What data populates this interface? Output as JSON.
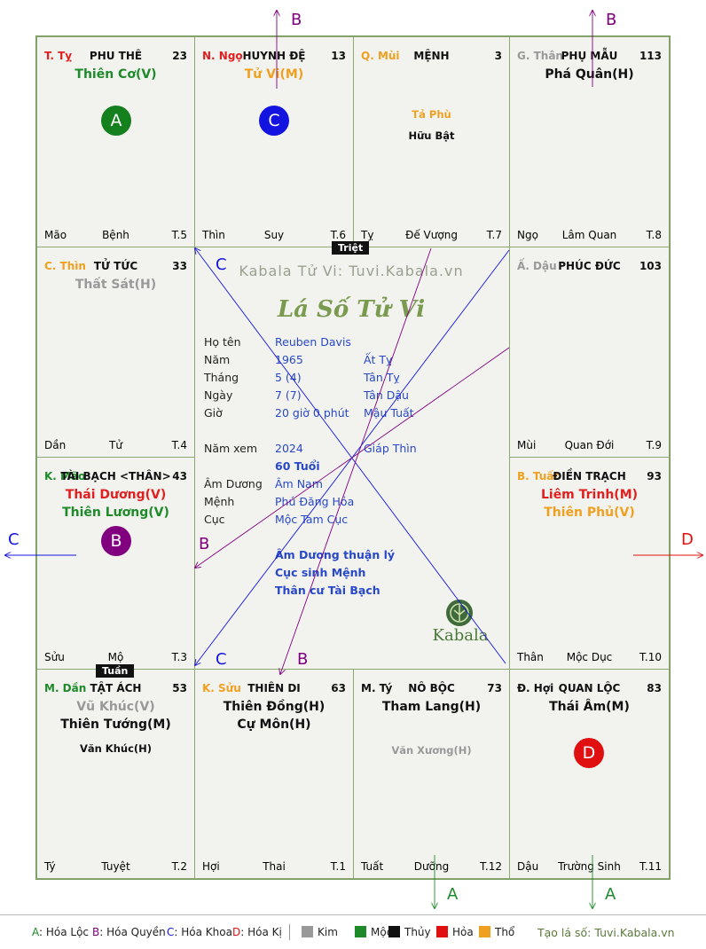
{
  "center": {
    "watermark": "Kabala Tử Vi: Tuvi.Kabala.vn",
    "title": "Lá Số Tử Vi",
    "logo_text": "Kabala",
    "rows": [
      {
        "label": "Họ tên",
        "value": "Reuben Davis",
        "extra": ""
      },
      {
        "label": "Năm",
        "value": "1965",
        "extra": "Ất Tỵ"
      },
      {
        "label": "Tháng",
        "value": "5  (4)",
        "extra": "Tân Tỵ"
      },
      {
        "label": "Ngày",
        "value": "7  (7)",
        "extra": "Tân Dậu"
      },
      {
        "label": "Giờ",
        "value": "20 giờ 0 phút",
        "extra": "Mậu Tuất"
      },
      {
        "label": "Năm xem",
        "value": "2024",
        "extra": "Giáp Thìn"
      },
      {
        "label": "",
        "value": "60 Tuổi",
        "extra": ""
      },
      {
        "label": "Âm Dương",
        "value": "Âm Nam",
        "extra": ""
      },
      {
        "label": "Mệnh",
        "value": "Phú Đăng Hỏa",
        "extra": ""
      },
      {
        "label": "Cục",
        "value": "Mộc Tam Cục",
        "extra": ""
      }
    ],
    "notes": [
      "Âm Dương thuận lý",
      "Cục sinh Mệnh",
      "Thân cư Tài Bạch"
    ]
  },
  "tags": {
    "triet": "Triệt",
    "tuan": "Tuần"
  },
  "arrow_labels": {
    "B": "B",
    "C": "C",
    "D": "D",
    "A": "A"
  },
  "cells": [
    {
      "pos": "T. Tỵ",
      "pos_color": "#e02020",
      "name": "PHU THÊ",
      "num": "23",
      "stars": [
        {
          "t": "Thiên Cơ(V)",
          "c": "#1e8a2a"
        }
      ],
      "minor": [],
      "circle": {
        "t": "A",
        "c": "#14801e"
      },
      "bl": "Mão",
      "bc": "Bệnh",
      "br": "T.5"
    },
    {
      "pos": "N. Ngọ",
      "pos_color": "#e02020",
      "name": "HUYNH ĐỆ",
      "num": "13",
      "stars": [
        {
          "t": "Tử Vi(M)",
          "c": "#f0a020"
        }
      ],
      "minor": [],
      "circle": {
        "t": "C",
        "c": "#1414e0"
      },
      "bl": "Thìn",
      "bc": "Suy",
      "br": "T.6"
    },
    {
      "pos": "Q. Mùi",
      "pos_color": "#f0a020",
      "name": "MỆNH",
      "num": "3",
      "stars": [],
      "minor": [
        {
          "t": "Tả Phù",
          "c": "#f0a020"
        },
        {
          "t": "Hữu Bật",
          "c": "#111111"
        }
      ],
      "circle": null,
      "bl": "Tỵ",
      "bc": "Đế Vượng",
      "br": "T.7"
    },
    {
      "pos": "G. Thân",
      "pos_color": "#999999",
      "name": "PHỤ MẪU",
      "num": "113",
      "stars": [
        {
          "t": "Phá Quân(H)",
          "c": "#111111"
        }
      ],
      "minor": [],
      "circle": null,
      "bl": "Ngọ",
      "bc": "Lâm Quan",
      "br": "T.8"
    },
    {
      "pos": "C. Thìn",
      "pos_color": "#f0a020",
      "name": "TỬ TỨC",
      "num": "33",
      "stars": [
        {
          "t": "Thất Sát(H)",
          "c": "#999999"
        }
      ],
      "minor": [],
      "circle": null,
      "bl": "Dần",
      "bc": "Tử",
      "br": "T.4"
    },
    {
      "pos": "Ấ. Dậu",
      "pos_color": "#999999",
      "name": "PHÚC ĐỨC",
      "num": "103",
      "stars": [],
      "minor": [],
      "circle": null,
      "bl": "Mùi",
      "bc": "Quan Đới",
      "br": "T.9"
    },
    {
      "pos": "K. Mão",
      "pos_color": "#1e8a2a",
      "name": "TÀI BẠCH <THÂN>",
      "num": "43",
      "stars": [
        {
          "t": "Thái Dương(V)",
          "c": "#e02020"
        },
        {
          "t": "Thiên Lương(V)",
          "c": "#1e8a2a"
        }
      ],
      "minor": [],
      "circle": {
        "t": "B",
        "c": "#800080"
      },
      "bl": "Sửu",
      "bc": "Mộ",
      "br": "T.3"
    },
    {
      "pos": "B. Tuất",
      "pos_color": "#f0a020",
      "name": "ĐIỀN TRẠCH",
      "num": "93",
      "stars": [
        {
          "t": "Liêm Trinh(M)",
          "c": "#e02020"
        },
        {
          "t": "Thiên Phủ(V)",
          "c": "#f0a020"
        }
      ],
      "minor": [],
      "circle": null,
      "bl": "Thân",
      "bc": "Mộc Dục",
      "br": "T.10"
    },
    {
      "pos": "M. Dần",
      "pos_color": "#1e8a2a",
      "name": "TẬT ÁCH",
      "num": "53",
      "stars": [
        {
          "t": "Vũ Khúc(V)",
          "c": "#999999"
        },
        {
          "t": "Thiên Tướng(M)",
          "c": "#111111"
        }
      ],
      "minor": [
        {
          "t": "Văn Khúc(H)",
          "c": "#111111"
        }
      ],
      "circle": null,
      "bl": "Tý",
      "bc": "Tuyệt",
      "br": "T.2"
    },
    {
      "pos": "K. Sửu",
      "pos_color": "#f0a020",
      "name": "THIÊN DI",
      "num": "63",
      "stars": [
        {
          "t": "Thiên Đồng(H)",
          "c": "#111111"
        },
        {
          "t": "Cự Môn(H)",
          "c": "#111111"
        }
      ],
      "minor": [],
      "circle": null,
      "bl": "Hợi",
      "bc": "Thai",
      "br": "T.1"
    },
    {
      "pos": "M. Tý",
      "pos_color": "#111111",
      "name": "NÔ BỘC",
      "num": "73",
      "stars": [
        {
          "t": "Tham Lang(H)",
          "c": "#111111"
        }
      ],
      "minor": [
        {
          "t": "Văn Xương(H)",
          "c": "#999999"
        }
      ],
      "circle": null,
      "bl": "Tuất",
      "bc": "Dưỡng",
      "br": "T.12"
    },
    {
      "pos": "Đ. Hợi",
      "pos_color": "#111111",
      "name": "QUAN LỘC",
      "num": "83",
      "stars": [
        {
          "t": "Thái Âm(M)",
          "c": "#111111"
        }
      ],
      "minor": [],
      "circle": {
        "t": "D",
        "c": "#e01010"
      },
      "bl": "Dậu",
      "bc": "Trường Sinh",
      "br": "T.11"
    }
  ],
  "legend": {
    "hoa": [
      {
        "k": "A",
        "t": ": Hóa Lộc",
        "c": "#1e8a2a"
      },
      {
        "k": "B",
        "t": ": Hóa Quyền",
        "c": "#800080"
      },
      {
        "k": "C",
        "t": ": Hóa Khoa",
        "c": "#1414e0"
      },
      {
        "k": "D",
        "t": ": Hóa Kị",
        "c": "#e01010"
      }
    ],
    "elements": [
      {
        "t": "Kim",
        "c": "#999999"
      },
      {
        "t": "Mộc",
        "c": "#1e8a2a"
      },
      {
        "t": "Thủy",
        "c": "#111111"
      },
      {
        "t": "Hỏa",
        "c": "#e01010"
      },
      {
        "t": "Thổ",
        "c": "#f0a020"
      }
    ],
    "credit": "Tạo lá số: Tuvi.Kabala.vn"
  }
}
